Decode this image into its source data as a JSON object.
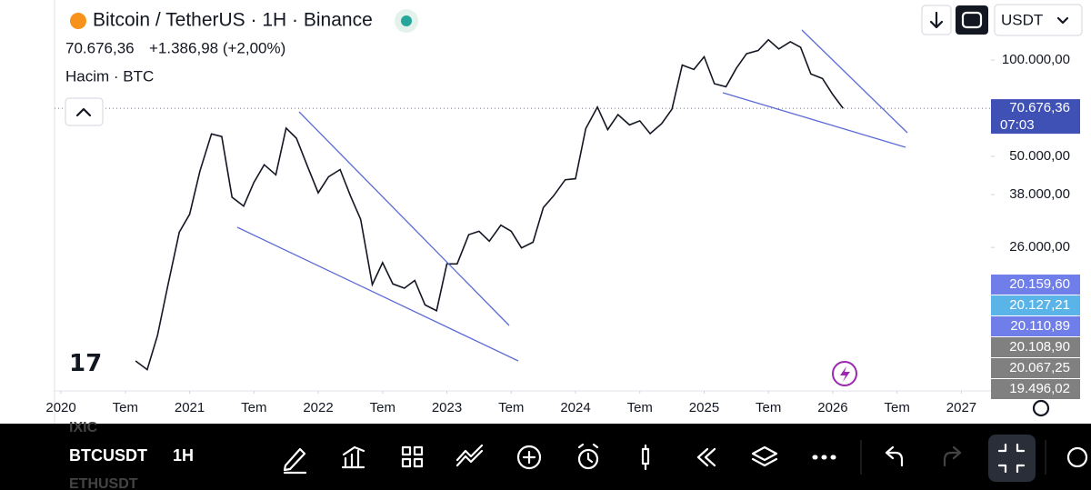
{
  "header": {
    "title": "Bitcoin / TetherUS · 1H · Binance",
    "change": "+1.386,98 (+2,00%)",
    "volume_label": "Hacim · BTC",
    "currency": "USDT"
  },
  "last_time": "07:03",
  "markers": [
    {
      "label": "20.159,60",
      "color": "#6f7ee8"
    },
    {
      "label": "20.127,21",
      "color": "#5ab4e8"
    },
    {
      "label": "20.110,89",
      "color": "#6f7ee8"
    },
    {
      "label": "20.108,90",
      "color": "#808080"
    },
    {
      "label": "20.067,25",
      "color": "#808080"
    },
    {
      "label": "19.496,02",
      "color": "#808080"
    }
  ],
  "toolbar": {
    "symbol": "BTCUSDT",
    "interval": "1H",
    "above": "IXIC",
    "below": "ETHUSDT"
  },
  "chart_data": {
    "type": "line",
    "log_scale": true,
    "color": "#131722",
    "last_price": {
      "value": 70676.36,
      "label": "70.676,36"
    },
    "xlim": [
      2019.95,
      2027.23
    ],
    "ylim": [
      9270,
      153900
    ],
    "xticks": [
      {
        "value": 2020,
        "label": "2020"
      },
      {
        "value": 2020.5,
        "label": "Tem"
      },
      {
        "value": 2021,
        "label": "2021"
      },
      {
        "value": 2021.5,
        "label": "Tem"
      },
      {
        "value": 2022,
        "label": "2022"
      },
      {
        "value": 2022.5,
        "label": "Tem"
      },
      {
        "value": 2023,
        "label": "2023"
      },
      {
        "value": 2023.5,
        "label": "Tem"
      },
      {
        "value": 2024,
        "label": "2024"
      },
      {
        "value": 2024.5,
        "label": "Tem"
      },
      {
        "value": 2025,
        "label": "2025"
      },
      {
        "value": 2025.5,
        "label": "Tem"
      },
      {
        "value": 2026,
        "label": "2026"
      },
      {
        "value": 2026.5,
        "label": "Tem"
      },
      {
        "value": 2027,
        "label": "2027"
      }
    ],
    "yticks": [
      {
        "value": 100000,
        "label": "100.000,00"
      },
      {
        "value": 50000,
        "label": "50.000,00"
      },
      {
        "value": 38000,
        "label": "38.000,00"
      },
      {
        "value": 26000,
        "label": "26.000,00"
      }
    ],
    "x": [
      2020.58,
      2020.67,
      2020.75,
      2020.83,
      2020.92,
      2021.0,
      2021.08,
      2021.17,
      2021.25,
      2021.33,
      2021.42,
      2021.5,
      2021.58,
      2021.67,
      2021.75,
      2021.83,
      2021.92,
      2022.0,
      2022.08,
      2022.17,
      2022.25,
      2022.33,
      2022.42,
      2022.5,
      2022.58,
      2022.67,
      2022.75,
      2022.83,
      2022.92,
      2023.0,
      2023.08,
      2023.17,
      2023.25,
      2023.33,
      2023.42,
      2023.5,
      2023.58,
      2023.67,
      2023.75,
      2023.83,
      2023.92,
      2024.0,
      2024.08,
      2024.17,
      2024.25,
      2024.33,
      2024.42,
      2024.5,
      2024.58,
      2024.67,
      2024.75,
      2024.83,
      2024.92,
      2025.0,
      2025.08,
      2025.17,
      2025.25,
      2025.33,
      2025.42,
      2025.5,
      2025.58,
      2025.67,
      2025.75,
      2025.83,
      2025.92,
      2026.0,
      2026.08
    ],
    "values": [
      11500,
      10800,
      13800,
      19700,
      29000,
      33000,
      45000,
      58800,
      57700,
      37300,
      35000,
      41500,
      47100,
      43800,
      61300,
      57000,
      46200,
      38500,
      43200,
      45500,
      37700,
      31800,
      19900,
      23300,
      20000,
      19400,
      20500,
      17200,
      16500,
      23100,
      23100,
      28500,
      29200,
      27200,
      30500,
      29200,
      25900,
      27000,
      34600,
      37700,
      42300,
      42600,
      61100,
      71300,
      60600,
      67500,
      62700,
      64600,
      58900,
      63300,
      70200,
      96400,
      93400,
      102400,
      84300,
      82500,
      94200,
      104600,
      107100,
      115700,
      108200,
      114000,
      109500,
      90400,
      87500,
      78000,
      70676
    ]
  }
}
